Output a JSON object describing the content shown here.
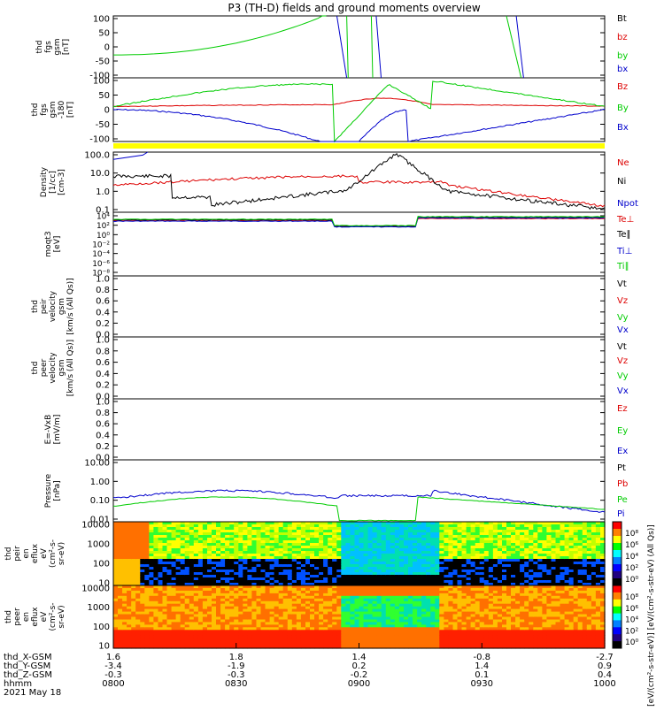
{
  "title": "P3 (TH-D) fields and ground moments overview",
  "colors": {
    "black": "#000000",
    "red": "#dd0000",
    "green": "#00cc00",
    "blue": "#0000cc",
    "yellow": "#ffff00"
  },
  "chart_data": [
    {
      "type": "line",
      "id": "fgs",
      "ylabel_lines": [
        "thd",
        "fgs",
        "gsm",
        "[nT]"
      ],
      "ticks": [
        "100",
        "50",
        "0",
        "-50",
        "-100"
      ],
      "ylim": [
        -100,
        100
      ],
      "legend": [
        {
          "name": "Bt",
          "color": "black"
        },
        {
          "name": "bz",
          "color": "red"
        },
        {
          "name": "by",
          "color": "green"
        },
        {
          "name": "bx",
          "color": "blue"
        }
      ]
    },
    {
      "type": "line",
      "id": "fgs_lp",
      "ylabel_lines": [
        "thd",
        "fgs",
        "gsm",
        "-180",
        "[nT]"
      ],
      "ticks": [
        "100",
        "50",
        "0",
        "-50",
        "-100"
      ],
      "ylim": [
        -120,
        120
      ],
      "legend": [
        {
          "name": "Bz",
          "color": "red"
        },
        {
          "name": "By",
          "color": "green"
        },
        {
          "name": "Bx",
          "color": "blue"
        }
      ]
    },
    {
      "type": "line",
      "id": "density",
      "ylabel_lines": [
        "Density",
        "[1/cc]",
        "[cm-3]"
      ],
      "ticks": [
        "100.0",
        "10.0",
        "1.0",
        "0.1"
      ],
      "yscale": "log",
      "legend": [
        {
          "name": "Ne",
          "color": "red"
        },
        {
          "name": "Ni",
          "color": "black"
        },
        {
          "name": "Npot",
          "color": "blue"
        }
      ]
    },
    {
      "type": "line",
      "id": "temp",
      "ylabel_lines": [
        "moqt3",
        "[eV]"
      ],
      "ticks": [
        "10⁴",
        "10²",
        "10⁰",
        "10⁻²",
        "10⁻⁴",
        "10⁻⁶",
        "10⁻⁸"
      ],
      "yscale": "log",
      "legend": [
        {
          "name": "Te⊥",
          "color": "red"
        },
        {
          "name": "Te∥",
          "color": "black"
        },
        {
          "name": "Ti⊥",
          "color": "blue"
        },
        {
          "name": "Ti∥",
          "color": "green"
        }
      ]
    },
    {
      "type": "line",
      "id": "peir_vel",
      "ylabel_lines": [
        "thd",
        "peir",
        "velocity",
        "gsm",
        "[km/s (All Qs)]"
      ],
      "ticks": [
        "1.0",
        "0.8",
        "0.6",
        "0.4",
        "0.2",
        "0.0"
      ],
      "legend": [
        {
          "name": "Vt",
          "color": "black"
        },
        {
          "name": "Vz",
          "color": "red"
        },
        {
          "name": "Vy",
          "color": "green"
        },
        {
          "name": "Vx",
          "color": "blue"
        }
      ]
    },
    {
      "type": "line",
      "id": "peer_vel",
      "ylabel_lines": [
        "thd",
        "peer",
        "velocity",
        "gsm",
        "[km/s (All Qs)]"
      ],
      "ticks": [
        "1.0",
        "0.8",
        "0.6",
        "0.4",
        "0.2",
        "0.0"
      ],
      "legend": [
        {
          "name": "Vt",
          "color": "black"
        },
        {
          "name": "Vz",
          "color": "red"
        },
        {
          "name": "Vy",
          "color": "green"
        },
        {
          "name": "Vx",
          "color": "blue"
        }
      ]
    },
    {
      "type": "line",
      "id": "efield",
      "ylabel_lines": [
        "E=-VxB",
        "[mV/m]"
      ],
      "ticks": [
        "1.0",
        "0.8",
        "0.6",
        "0.4",
        "0.2",
        "0.0"
      ],
      "legend": [
        {
          "name": "Ez",
          "color": "red"
        },
        {
          "name": "Ey",
          "color": "green"
        },
        {
          "name": "Ex",
          "color": "blue"
        }
      ]
    },
    {
      "type": "line",
      "id": "pressure",
      "ylabel_lines": [
        "Pressure",
        "[nPa]"
      ],
      "ticks": [
        "10.00",
        "1.00",
        "0.10",
        "0.01"
      ],
      "yscale": "log",
      "legend": [
        {
          "name": "Pt",
          "color": "black"
        },
        {
          "name": "Pb",
          "color": "red"
        },
        {
          "name": "Pe",
          "color": "green"
        },
        {
          "name": "Pi",
          "color": "blue"
        }
      ]
    },
    {
      "type": "heatmap",
      "id": "peir_spec",
      "ylabel_lines": [
        "thd",
        "peir",
        "en",
        "eflux",
        "eV",
        "(cm²-s-",
        "sr-eV)"
      ],
      "ticks": [
        "10000",
        "1000",
        "100",
        "10"
      ],
      "yscale": "log",
      "colorbar_ticks": [
        "10⁸",
        "10⁶",
        "10⁴",
        "10²",
        "10⁰"
      ]
    },
    {
      "type": "heatmap",
      "id": "peer_spec",
      "ylabel_lines": [
        "thd",
        "peer",
        "en",
        "eflux",
        "eV",
        "(cm²-s-",
        "sr-eV)"
      ],
      "ticks": [
        "10000",
        "1000",
        "100",
        "10"
      ],
      "yscale": "log",
      "colorbar_ticks": [
        "10⁸",
        "10⁶",
        "10⁴",
        "10²",
        "10⁰"
      ]
    }
  ],
  "colorbar_label": "[eV/(cm²-s-str-eV)] [eV/(cm²-s-str-eV) (All Qs)]",
  "xaxis": {
    "row_labels": [
      "thd_X-GSM",
      "thd_Y-GSM",
      "thd_Z-GSM",
      "hhmm",
      "2021 May 18"
    ],
    "x_gsm": [
      "1.6",
      "1.8",
      "1.4",
      "-0.8",
      "-2.7"
    ],
    "y_gsm": [
      "-3.4",
      "-1.9",
      "0.2",
      "1.4",
      "0.9"
    ],
    "z_gsm": [
      "-0.3",
      "-0.3",
      "-0.2",
      "0.1",
      "0.4"
    ],
    "hhmm": [
      "0800",
      "0830",
      "0900",
      "0930",
      "1000"
    ]
  }
}
